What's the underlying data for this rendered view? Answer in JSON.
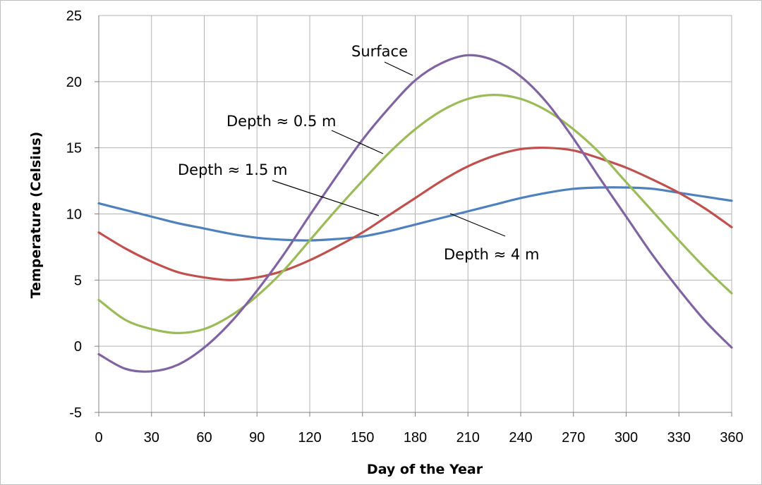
{
  "chart_data": {
    "type": "line",
    "title": "",
    "xlabel": "Day of the Year",
    "ylabel": "Temperature  (Celsius)",
    "xlim": [
      0,
      360
    ],
    "ylim": [
      -5,
      25
    ],
    "xticks": [
      0,
      30,
      60,
      90,
      120,
      150,
      180,
      210,
      240,
      270,
      300,
      330,
      360
    ],
    "yticks": [
      -5,
      0,
      5,
      10,
      15,
      20,
      25
    ],
    "grid": true,
    "legend": "none",
    "colors": {
      "surface": "#8064a2",
      "depth_0_5": "#9bbb59",
      "depth_1_5": "#c0504d",
      "depth_4": "#4f81bd",
      "grid": "#b3b3b3"
    },
    "x": [
      0,
      15,
      30,
      45,
      60,
      75,
      90,
      105,
      120,
      135,
      150,
      165,
      180,
      195,
      210,
      225,
      240,
      255,
      270,
      285,
      300,
      315,
      330,
      345,
      360
    ],
    "series": [
      {
        "key": "surface",
        "name": "Surface",
        "values": [
          -0.6,
          -1.7,
          -1.9,
          -1.4,
          -0.1,
          1.8,
          4.2,
          6.9,
          9.9,
          12.8,
          15.6,
          18.0,
          20.1,
          21.4,
          22.0,
          21.6,
          20.4,
          18.4,
          15.7,
          12.7,
          9.8,
          6.9,
          4.3,
          1.9,
          -0.1
        ]
      },
      {
        "key": "depth_0_5",
        "name": "Depth ≈ 0.5 m",
        "values": [
          3.5,
          2.0,
          1.3,
          1.0,
          1.3,
          2.3,
          3.8,
          5.7,
          8.0,
          10.3,
          12.5,
          14.6,
          16.4,
          17.8,
          18.7,
          19.0,
          18.7,
          17.8,
          16.4,
          14.6,
          12.4,
          10.2,
          8.0,
          5.9,
          4.0
        ]
      },
      {
        "key": "depth_1_5",
        "name": "Depth ≈ 1.5 m",
        "values": [
          8.6,
          7.4,
          6.4,
          5.6,
          5.2,
          5.0,
          5.2,
          5.7,
          6.5,
          7.5,
          8.6,
          9.9,
          11.2,
          12.5,
          13.6,
          14.4,
          14.9,
          15.0,
          14.8,
          14.2,
          13.5,
          12.6,
          11.6,
          10.4,
          9.0
        ]
      },
      {
        "key": "depth_4",
        "name": "Depth ≈ 4 m",
        "values": [
          10.8,
          10.3,
          9.8,
          9.3,
          8.9,
          8.5,
          8.2,
          8.05,
          8.0,
          8.1,
          8.3,
          8.7,
          9.2,
          9.7,
          10.2,
          10.7,
          11.2,
          11.6,
          11.9,
          12.0,
          12.0,
          11.9,
          11.6,
          11.3,
          11.0
        ]
      }
    ],
    "annotations": [
      {
        "key": "surface",
        "text": "Surface"
      },
      {
        "key": "depth_0_5",
        "text": "Depth ≈ 0.5 m"
      },
      {
        "key": "depth_1_5",
        "text": "Depth ≈ 1.5 m"
      },
      {
        "key": "depth_4",
        "text": "Depth ≈ 4 m"
      }
    ]
  }
}
